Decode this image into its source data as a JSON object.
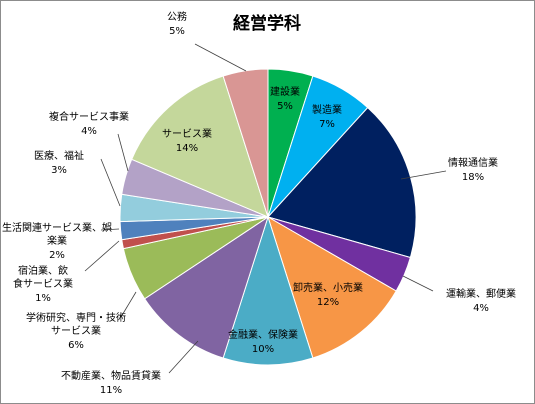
{
  "chart_data": {
    "type": "pie",
    "title": "経営学科",
    "slices": [
      {
        "label": "建設業",
        "percent_label": "5%",
        "value": 5,
        "color": "#00b050"
      },
      {
        "label": "製造業",
        "percent_label": "7%",
        "value": 7,
        "color": "#00b0f0"
      },
      {
        "label": "情報通信業",
        "percent_label": "18%",
        "value": 18,
        "color": "#002060"
      },
      {
        "label": "運輸業、郵便業",
        "percent_label": "4%",
        "value": 4,
        "color": "#7030a0"
      },
      {
        "label": "卸売業、小売業",
        "percent_label": "12%",
        "value": 12,
        "color": "#f79646"
      },
      {
        "label": "金融業、保険業",
        "percent_label": "10%",
        "value": 10,
        "color": "#4bacc6"
      },
      {
        "label": "不動産業、物品賃貸業",
        "percent_label": "11%",
        "value": 11,
        "color": "#8064a2"
      },
      {
        "label": "学術研究、専門・技術サービス業",
        "percent_label": "6%",
        "value": 6,
        "color": "#9bbb59"
      },
      {
        "label": "宿泊業、飲食サービス業",
        "percent_label": "1%",
        "value": 1,
        "color": "#c0504d"
      },
      {
        "label": "生活関連サービス業、娯楽業",
        "percent_label": "2%",
        "value": 2,
        "color": "#4f81bd"
      },
      {
        "label": "医療、福祉",
        "percent_label": "3%",
        "value": 3,
        "color": "#93cddd"
      },
      {
        "label": "複合サービス事業",
        "percent_label": "4%",
        "value": 4,
        "color": "#b3a2c7"
      },
      {
        "label": "サービス業",
        "percent_label": "14%",
        "value": 14,
        "color": "#c4d79b"
      },
      {
        "label": "公務",
        "percent_label": "5%",
        "value": 5,
        "color": "#d99694"
      }
    ],
    "legend": "none"
  }
}
